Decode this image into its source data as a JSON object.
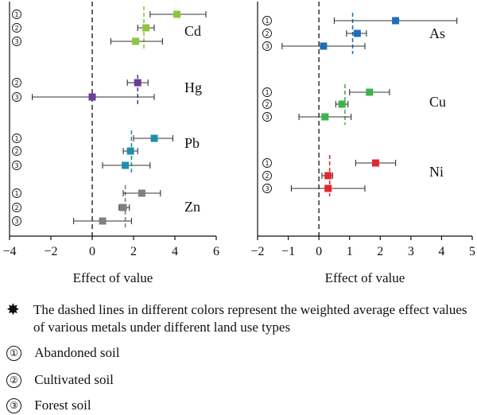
{
  "chart_data": [
    {
      "type": "forest",
      "xlabel": "Effect of value",
      "xlim": [
        -4,
        6
      ],
      "xticks": [
        "−4",
        "−2",
        "0",
        "2",
        "4",
        "6"
      ],
      "reference_line": 0,
      "metals": [
        {
          "name": "Cd",
          "color": "#8cc63e",
          "weighted_mean": 2.5,
          "rows": [
            {
              "marker": "①",
              "mean": 4.1,
              "low": 2.8,
              "high": 5.5
            },
            {
              "marker": "②",
              "mean": 2.6,
              "low": 2.2,
              "high": 3.0
            },
            {
              "marker": "③",
              "mean": 2.1,
              "low": 0.9,
              "high": 3.4
            }
          ]
        },
        {
          "name": "Hg",
          "color": "#6a3d9a",
          "weighted_mean": 2.2,
          "rows": [
            {
              "marker": "②",
              "mean": 2.2,
              "low": 1.7,
              "high": 2.7
            },
            {
              "marker": "③",
              "mean": 0.0,
              "low": -2.9,
              "high": 3.0
            }
          ]
        },
        {
          "name": "Pb",
          "color": "#1f8fa6",
          "weighted_mean": 1.9,
          "rows": [
            {
              "marker": "①",
              "mean": 3.0,
              "low": 2.0,
              "high": 3.9
            },
            {
              "marker": "②",
              "mean": 1.85,
              "low": 1.5,
              "high": 2.2
            },
            {
              "marker": "③",
              "mean": 1.6,
              "low": 0.5,
              "high": 2.8
            }
          ]
        },
        {
          "name": "Zn",
          "color": "#808080",
          "weighted_mean": 1.6,
          "rows": [
            {
              "marker": "①",
              "mean": 2.4,
              "low": 1.5,
              "high": 3.3
            },
            {
              "marker": "②",
              "mean": 1.5,
              "low": 1.3,
              "high": 1.8
            },
            {
              "marker": "③",
              "mean": 0.5,
              "low": -0.9,
              "high": 1.9
            }
          ]
        }
      ]
    },
    {
      "type": "forest",
      "xlabel": "Effect of value",
      "xlim": [
        -2,
        5
      ],
      "xticks": [
        "−2",
        "−1",
        "0",
        "1",
        "2",
        "3",
        "4",
        "5"
      ],
      "reference_line": 0,
      "metals": [
        {
          "name": "As",
          "color": "#1f6fb8",
          "weighted_mean": 1.1,
          "rows": [
            {
              "marker": "①",
              "mean": 2.5,
              "low": 0.5,
              "high": 4.5
            },
            {
              "marker": "②",
              "mean": 1.25,
              "low": 0.9,
              "high": 1.55
            },
            {
              "marker": "③",
              "mean": 0.15,
              "low": -1.2,
              "high": 1.5
            }
          ]
        },
        {
          "name": "Cu",
          "color": "#3cb44b",
          "weighted_mean": 0.85,
          "rows": [
            {
              "marker": "①",
              "mean": 1.65,
              "low": 1.0,
              "high": 2.3
            },
            {
              "marker": "②",
              "mean": 0.75,
              "low": 0.55,
              "high": 0.95
            },
            {
              "marker": "③",
              "mean": 0.2,
              "low": -0.65,
              "high": 1.05
            }
          ]
        },
        {
          "name": "Ni",
          "color": "#e0282e",
          "weighted_mean": 0.35,
          "rows": [
            {
              "marker": "①",
              "mean": 1.85,
              "low": 1.2,
              "high": 2.5
            },
            {
              "marker": "②",
              "mean": 0.3,
              "low": 0.1,
              "high": 0.45
            },
            {
              "marker": "③",
              "mean": 0.3,
              "low": -0.9,
              "high": 1.5
            }
          ]
        }
      ]
    }
  ],
  "footnotes": {
    "star_symbol": "✸",
    "dashed_note": "The dashed lines in different colors represent the weighted average effect values of various metals under different land use types",
    "legend": [
      {
        "marker": "①",
        "label": "Abandoned soil"
      },
      {
        "marker": "②",
        "label": "Cultivated soil"
      },
      {
        "marker": "③",
        "label": "Forest soil"
      }
    ]
  }
}
